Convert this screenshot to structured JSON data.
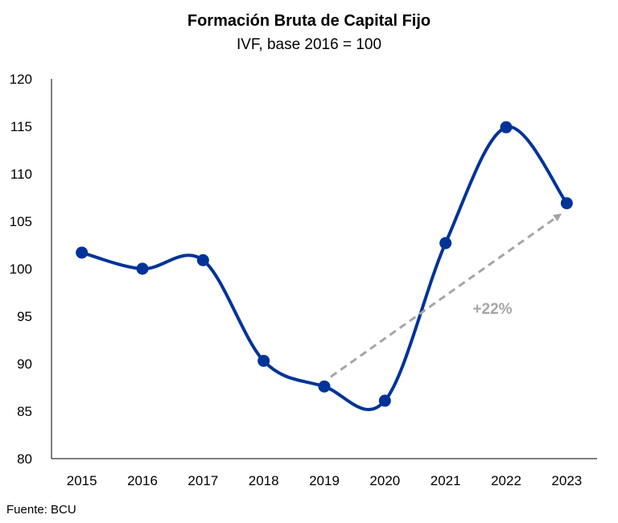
{
  "chart_data": {
    "type": "line",
    "title": "Formación Bruta de Capital Fijo",
    "subtitle": "IVF, base 2016 = 100",
    "categories": [
      "2015",
      "2016",
      "2017",
      "2018",
      "2019",
      "2020",
      "2021",
      "2022",
      "2023"
    ],
    "series": [
      {
        "values": [
          101.7,
          100.0,
          100.9,
          90.3,
          87.6,
          86.1,
          102.7,
          114.9,
          106.9
        ]
      }
    ],
    "ylim": [
      80,
      120
    ],
    "yticks": [
      80,
      85,
      90,
      95,
      100,
      105,
      110,
      115,
      120
    ],
    "grid": false,
    "annotation": {
      "text": "+22%",
      "from_category": "2019",
      "to_category": "2023"
    },
    "source": "Fuente: BCU",
    "colors": {
      "line": "#003399",
      "arrow": "#a6a6a6"
    }
  }
}
